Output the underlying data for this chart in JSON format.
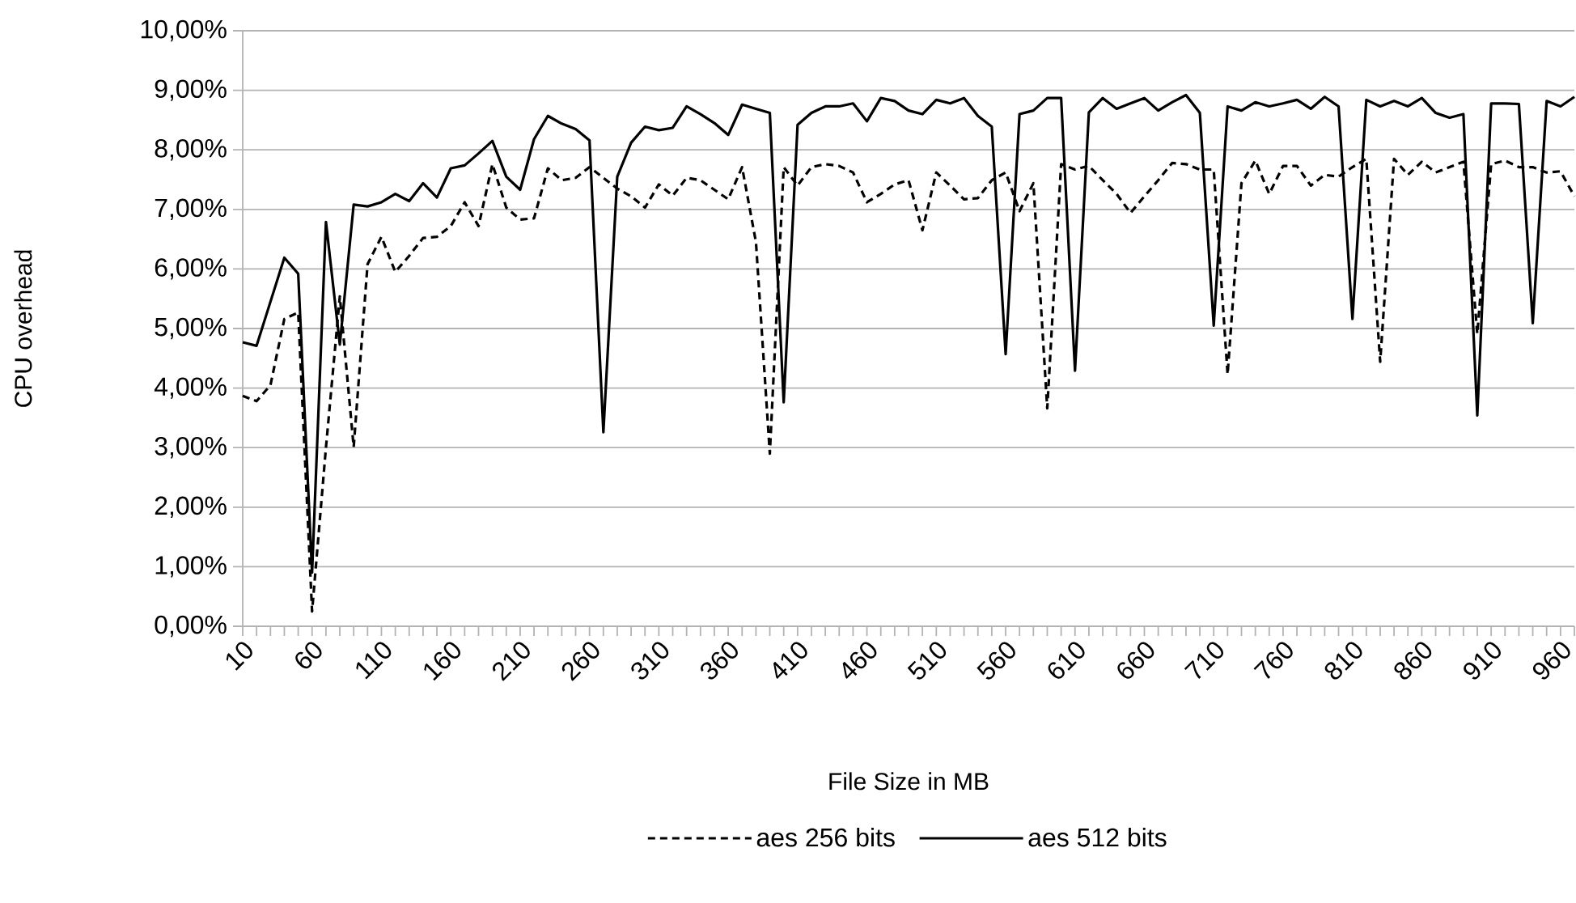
{
  "chart_data": {
    "type": "line",
    "xlabel": "File Size in MB",
    "ylabel": "CPU overhead",
    "x": [
      10,
      20,
      30,
      40,
      50,
      60,
      70,
      80,
      90,
      100,
      110,
      120,
      130,
      140,
      150,
      160,
      170,
      180,
      190,
      200,
      210,
      220,
      230,
      240,
      250,
      260,
      270,
      280,
      290,
      300,
      310,
      320,
      330,
      340,
      350,
      360,
      370,
      380,
      390,
      400,
      410,
      420,
      430,
      440,
      450,
      460,
      470,
      480,
      490,
      500,
      510,
      520,
      530,
      540,
      550,
      560,
      570,
      580,
      590,
      600,
      610,
      620,
      630,
      640,
      650,
      660,
      670,
      680,
      690,
      700,
      710,
      720,
      730,
      740,
      750,
      760,
      770,
      780,
      790,
      800,
      810,
      820,
      830,
      840,
      850,
      860,
      870,
      880,
      890,
      900,
      910,
      920,
      930,
      940,
      950,
      960,
      970
    ],
    "xlim": [
      10,
      970
    ],
    "xticks": [
      10,
      {
        "value": 20,
        "label": null
      },
      {
        "value": 30,
        "label": null
      },
      {
        "value": 40,
        "label": null
      },
      {
        "value": 50,
        "label": null
      },
      60,
      {
        "value": 70,
        "label": null
      },
      {
        "value": 80,
        "label": null
      },
      {
        "value": 90,
        "label": null
      },
      {
        "value": 100,
        "label": null
      },
      110,
      {
        "value": 120,
        "label": null
      },
      {
        "value": 130,
        "label": null
      },
      {
        "value": 140,
        "label": null
      },
      {
        "value": 150,
        "label": null
      },
      160,
      {
        "value": 170,
        "label": null
      },
      {
        "value": 180,
        "label": null
      },
      {
        "value": 190,
        "label": null
      },
      {
        "value": 200,
        "label": null
      },
      210,
      {
        "value": 220,
        "label": null
      },
      {
        "value": 230,
        "label": null
      },
      {
        "value": 240,
        "label": null
      },
      {
        "value": 250,
        "label": null
      },
      260,
      {
        "value": 270,
        "label": null
      },
      {
        "value": 280,
        "label": null
      },
      {
        "value": 290,
        "label": null
      },
      {
        "value": 300,
        "label": null
      },
      310,
      {
        "value": 320,
        "label": null
      },
      {
        "value": 330,
        "label": null
      },
      {
        "value": 340,
        "label": null
      },
      {
        "value": 350,
        "label": null
      },
      360,
      {
        "value": 370,
        "label": null
      },
      {
        "value": 380,
        "label": null
      },
      {
        "value": 390,
        "label": null
      },
      {
        "value": 400,
        "label": null
      },
      410,
      {
        "value": 420,
        "label": null
      },
      {
        "value": 430,
        "label": null
      },
      {
        "value": 440,
        "label": null
      },
      {
        "value": 450,
        "label": null
      },
      460,
      {
        "value": 470,
        "label": null
      },
      {
        "value": 480,
        "label": null
      },
      {
        "value": 490,
        "label": null
      },
      {
        "value": 500,
        "label": null
      },
      510,
      {
        "value": 520,
        "label": null
      },
      {
        "value": 530,
        "label": null
      },
      {
        "value": 540,
        "label": null
      },
      {
        "value": 550,
        "label": null
      },
      560,
      {
        "value": 570,
        "label": null
      },
      {
        "value": 580,
        "label": null
      },
      {
        "value": 590,
        "label": null
      },
      {
        "value": 600,
        "label": null
      },
      610,
      {
        "value": 620,
        "label": null
      },
      {
        "value": 630,
        "label": null
      },
      {
        "value": 640,
        "label": null
      },
      {
        "value": 650,
        "label": null
      },
      660,
      {
        "value": 670,
        "label": null
      },
      {
        "value": 680,
        "label": null
      },
      {
        "value": 690,
        "label": null
      },
      {
        "value": 700,
        "label": null
      },
      710,
      {
        "value": 720,
        "label": null
      },
      {
        "value": 730,
        "label": null
      },
      {
        "value": 740,
        "label": null
      },
      {
        "value": 750,
        "label": null
      },
      760,
      {
        "value": 770,
        "label": null
      },
      {
        "value": 780,
        "label": null
      },
      {
        "value": 790,
        "label": null
      },
      {
        "value": 800,
        "label": null
      },
      810,
      {
        "value": 820,
        "label": null
      },
      {
        "value": 830,
        "label": null
      },
      {
        "value": 840,
        "label": null
      },
      {
        "value": 850,
        "label": null
      },
      860,
      {
        "value": 870,
        "label": null
      },
      {
        "value": 880,
        "label": null
      },
      {
        "value": 890,
        "label": null
      },
      {
        "value": 900,
        "label": null
      },
      910,
      {
        "value": 920,
        "label": null
      },
      {
        "value": 930,
        "label": null
      },
      {
        "value": 940,
        "label": null
      },
      {
        "value": 950,
        "label": null
      },
      960,
      {
        "value": 970,
        "label": null
      }
    ],
    "ylim": [
      0,
      10
    ],
    "yticks": [
      {
        "value": 0,
        "label": "0,00%"
      },
      {
        "value": 1,
        "label": "1,00%"
      },
      {
        "value": 2,
        "label": "2,00%"
      },
      {
        "value": 3,
        "label": "3,00%"
      },
      {
        "value": 4,
        "label": "4,00%"
      },
      {
        "value": 5,
        "label": "5,00%"
      },
      {
        "value": 6,
        "label": "6,00%"
      },
      {
        "value": 7,
        "label": "7,00%"
      },
      {
        "value": 8,
        "label": "8,00%"
      },
      {
        "value": 9,
        "label": "9,00%"
      },
      {
        "value": 10,
        "label": "10,00%"
      }
    ],
    "grid": "y",
    "legend": "bottom",
    "marker": "none",
    "series": [
      {
        "name": "aes 256 bits",
        "color": "#000000",
        "line_style": "dashed",
        "values": [
          3.87,
          3.78,
          4.05,
          5.16,
          5.27,
          0.25,
          3.0,
          5.54,
          3.01,
          6.08,
          6.54,
          5.95,
          6.22,
          6.52,
          6.54,
          6.72,
          7.12,
          6.72,
          7.76,
          7.03,
          6.83,
          6.85,
          7.69,
          7.49,
          7.53,
          7.71,
          7.53,
          7.35,
          7.22,
          7.03,
          7.42,
          7.23,
          7.53,
          7.49,
          7.33,
          7.17,
          7.71,
          6.45,
          2.9,
          7.71,
          7.4,
          7.71,
          7.76,
          7.73,
          7.62,
          7.12,
          7.26,
          7.42,
          7.49,
          6.65,
          7.62,
          7.4,
          7.17,
          7.19,
          7.49,
          7.62,
          6.97,
          7.44,
          3.66,
          7.76,
          7.67,
          7.73,
          7.49,
          7.26,
          6.94,
          7.22,
          7.49,
          7.78,
          7.76,
          7.67,
          7.67,
          4.23,
          7.44,
          7.82,
          7.26,
          7.73,
          7.73,
          7.4,
          7.58,
          7.55,
          7.71,
          7.85,
          4.44,
          7.85,
          7.58,
          7.8,
          7.62,
          7.71,
          7.8,
          4.91,
          7.76,
          7.82,
          7.71,
          7.71,
          7.62,
          7.64,
          7.22
        ]
      },
      {
        "name": "aes 512 bits",
        "color": "#000000",
        "line_style": "solid",
        "values": [
          4.77,
          4.71,
          5.45,
          6.19,
          5.92,
          0.9,
          6.79,
          4.73,
          7.08,
          7.05,
          7.12,
          7.26,
          7.14,
          7.44,
          7.2,
          7.69,
          7.74,
          7.94,
          8.15,
          7.55,
          7.33,
          8.18,
          8.57,
          8.44,
          8.35,
          8.16,
          3.26,
          7.55,
          8.12,
          8.39,
          8.33,
          8.37,
          8.73,
          8.6,
          8.45,
          8.25,
          8.76,
          8.69,
          8.62,
          3.76,
          8.42,
          8.62,
          8.73,
          8.73,
          8.78,
          8.48,
          8.87,
          8.82,
          8.66,
          8.6,
          8.84,
          8.78,
          8.87,
          8.57,
          8.39,
          4.57,
          8.6,
          8.66,
          8.87,
          8.87,
          4.29,
          8.63,
          8.87,
          8.69,
          8.78,
          8.87,
          8.66,
          8.8,
          8.92,
          8.62,
          5.05,
          8.73,
          8.66,
          8.8,
          8.73,
          8.78,
          8.84,
          8.69,
          8.89,
          8.73,
          5.16,
          8.84,
          8.73,
          8.82,
          8.73,
          8.87,
          8.62,
          8.54,
          8.6,
          3.54,
          8.78,
          8.78,
          8.77,
          5.09,
          8.82,
          8.73,
          8.89
        ]
      }
    ]
  }
}
